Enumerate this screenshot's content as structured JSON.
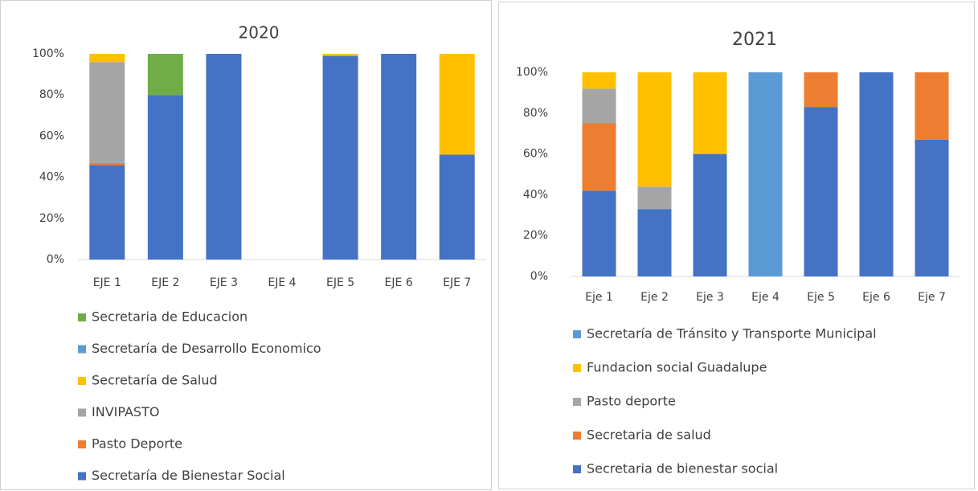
{
  "chart_data": [
    {
      "type": "stacked_bar",
      "title": "2020",
      "categories": [
        "EJE 1",
        "EJE 2",
        "EJE 3",
        "EJE 4",
        "EJE 5",
        "EJE 6",
        "EJE 7"
      ],
      "series": [
        {
          "name": "Secretaría de Bienestar Social",
          "color": "#4472c4",
          "values": [
            46,
            80,
            100,
            0,
            99,
            100,
            51
          ]
        },
        {
          "name": "Pasto Deporte",
          "color": "#ed7d31",
          "values": [
            1,
            0,
            0,
            0,
            0,
            0,
            0
          ]
        },
        {
          "name": "INVIPASTO",
          "color": "#a5a5a5",
          "values": [
            49,
            0,
            0,
            0,
            0,
            0,
            0
          ]
        },
        {
          "name": "Secretaría de Salud",
          "color": "#ffc000",
          "values": [
            4,
            0,
            0,
            0,
            1,
            0,
            49
          ]
        },
        {
          "name": "Secretaría de Desarrollo Economico",
          "color": "#5b9bd5",
          "values": [
            0,
            0,
            0,
            0,
            0,
            0,
            0
          ]
        },
        {
          "name": "Secretaria de Educacion",
          "color": "#70ad47",
          "values": [
            0,
            20,
            0,
            0,
            0,
            0,
            0
          ]
        }
      ],
      "ylim": [
        0,
        100
      ],
      "yticks": [
        {
          "value": 0,
          "label": "0%"
        },
        {
          "value": 20,
          "label": "20%"
        },
        {
          "value": 40,
          "label": "40%"
        },
        {
          "value": 60,
          "label": "60%"
        },
        {
          "value": 80,
          "label": "80%"
        },
        {
          "value": 100,
          "label": "100%"
        }
      ],
      "grid": false,
      "legend": "bottom"
    },
    {
      "type": "stacked_bar",
      "title": "2021",
      "categories": [
        "Eje 1",
        "Eje 2",
        "Eje 3",
        "Eje 4",
        "Eje 5",
        "Eje 6",
        "Eje 7"
      ],
      "series": [
        {
          "name": "Secretaria de bienestar social",
          "color": "#4472c4",
          "values": [
            42,
            33,
            60,
            0,
            83,
            100,
            67
          ]
        },
        {
          "name": "Secretaria de salud",
          "color": "#ed7d31",
          "values": [
            33,
            0,
            0,
            0,
            17,
            0,
            33
          ]
        },
        {
          "name": "Pasto deporte",
          "color": "#a5a5a5",
          "values": [
            17,
            11,
            0,
            0,
            0,
            0,
            0
          ]
        },
        {
          "name": "Fundacion social Guadalupe",
          "color": "#ffc000",
          "values": [
            8,
            56,
            40,
            0,
            0,
            0,
            0
          ]
        },
        {
          "name": "Secretaría de Tránsito y Transporte Municipal",
          "color": "#5b9bd5",
          "values": [
            0,
            0,
            0,
            100,
            0,
            0,
            0
          ]
        }
      ],
      "ylim": [
        0,
        100
      ],
      "yticks": [
        {
          "value": 0,
          "label": "0%"
        },
        {
          "value": 20,
          "label": "20%"
        },
        {
          "value": 40,
          "label": "40%"
        },
        {
          "value": 60,
          "label": "60%"
        },
        {
          "value": 80,
          "label": "80%"
        },
        {
          "value": 100,
          "label": "100%"
        }
      ],
      "grid": false,
      "legend": "bottom"
    }
  ]
}
